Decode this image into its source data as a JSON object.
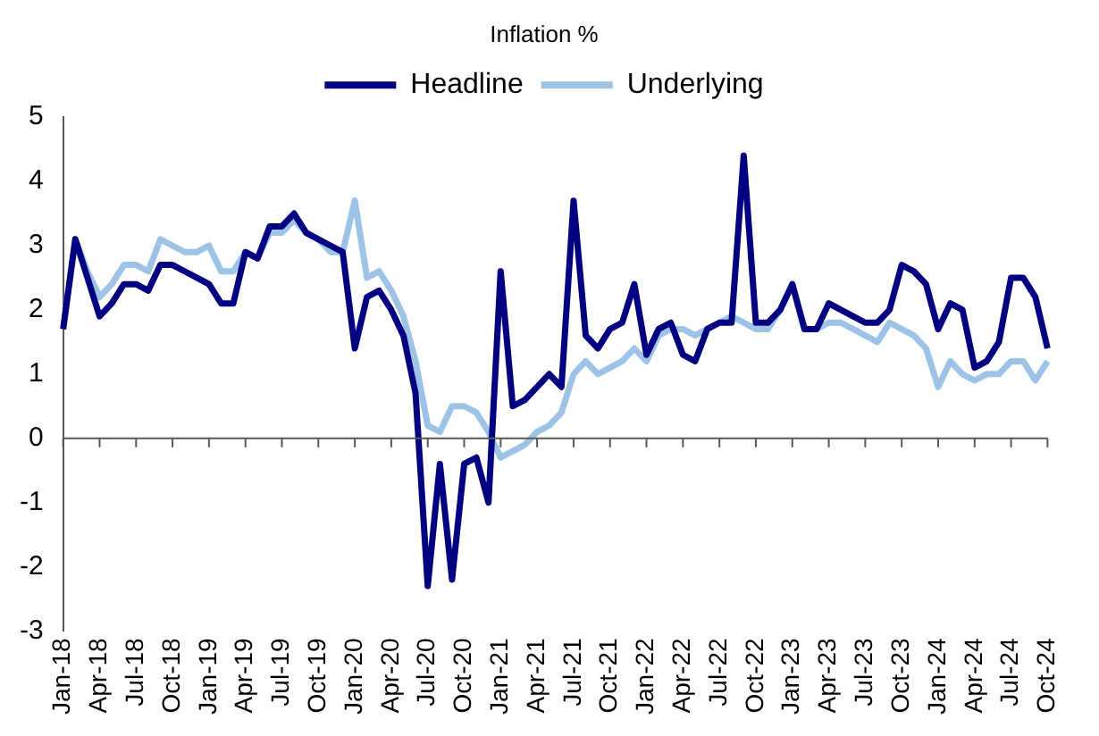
{
  "chart_data": {
    "type": "line",
    "title": "Inflation %",
    "categories": [
      "Jan-18",
      null,
      null,
      "Apr-18",
      null,
      null,
      "Jul-18",
      null,
      null,
      "Oct-18",
      null,
      null,
      "Jan-19",
      null,
      null,
      "Apr-19",
      null,
      null,
      "Jul-19",
      null,
      null,
      "Oct-19",
      null,
      null,
      "Jan-20",
      null,
      null,
      "Apr-20",
      null,
      null,
      "Jul-20",
      null,
      null,
      "Oct-20",
      null,
      null,
      "Jan-21",
      null,
      null,
      "Apr-21",
      null,
      null,
      "Jul-21",
      null,
      null,
      "Oct-21",
      null,
      null,
      "Jan-22",
      null,
      null,
      "Apr-22",
      null,
      null,
      "Jul-22",
      null,
      null,
      "Oct-22",
      null,
      null,
      "Jan-23",
      null,
      null,
      "Apr-23",
      null,
      null,
      "Jul-23",
      null,
      null,
      "Oct-23",
      null,
      null,
      "Jan-24",
      null,
      null,
      "Apr-24",
      null,
      null,
      "Jul-24",
      null,
      null,
      "Oct-24"
    ],
    "series": [
      {
        "name": "Headline",
        "color": "#000080",
        "values": [
          1.7,
          3.1,
          2.5,
          1.9,
          2.1,
          2.4,
          2.4,
          2.3,
          2.7,
          2.7,
          2.6,
          2.5,
          2.4,
          2.1,
          2.1,
          2.9,
          2.8,
          3.3,
          3.3,
          3.5,
          3.2,
          3.1,
          3.0,
          2.9,
          1.4,
          2.2,
          2.3,
          2.0,
          1.6,
          0.7,
          -2.3,
          -0.4,
          -2.2,
          -0.4,
          -0.3,
          -1.0,
          2.6,
          0.5,
          0.6,
          0.8,
          1.0,
          0.8,
          3.7,
          1.6,
          1.4,
          1.7,
          1.8,
          2.4,
          1.3,
          1.7,
          1.8,
          1.3,
          1.2,
          1.7,
          1.8,
          1.8,
          4.4,
          1.8,
          1.8,
          2.0,
          2.4,
          1.7,
          1.7,
          2.1,
          2.0,
          1.9,
          1.8,
          1.8,
          2.0,
          2.7,
          2.6,
          2.4,
          1.7,
          2.1,
          2.0,
          1.1,
          1.2,
          1.5,
          2.5,
          2.5,
          2.2,
          1.4
        ]
      },
      {
        "name": "Underlying",
        "color": "#9dc3e6",
        "values": [
          1.7,
          3.1,
          2.6,
          2.2,
          2.4,
          2.7,
          2.7,
          2.6,
          3.1,
          3.0,
          2.9,
          2.9,
          3.0,
          2.6,
          2.6,
          2.9,
          2.8,
          3.2,
          3.2,
          3.4,
          3.2,
          3.1,
          2.9,
          2.9,
          3.7,
          2.5,
          2.6,
          2.3,
          1.9,
          1.2,
          0.2,
          0.1,
          0.5,
          0.5,
          0.4,
          0.1,
          -0.3,
          -0.2,
          -0.1,
          0.1,
          0.2,
          0.4,
          1.0,
          1.2,
          1.0,
          1.1,
          1.2,
          1.4,
          1.2,
          1.6,
          1.7,
          1.7,
          1.6,
          1.7,
          1.8,
          1.9,
          1.8,
          1.7,
          1.7,
          2.0,
          2.4,
          1.7,
          1.7,
          1.8,
          1.8,
          1.7,
          1.6,
          1.5,
          1.8,
          1.7,
          1.6,
          1.4,
          0.8,
          1.2,
          1.0,
          0.9,
          1.0,
          1.0,
          1.2,
          1.2,
          0.9,
          1.2
        ]
      }
    ],
    "ylim": [
      -3,
      5
    ],
    "yticks": [
      -3,
      -2,
      -1,
      0,
      1,
      2,
      3,
      4,
      5
    ],
    "ref_lines": [
      {
        "axis": "y",
        "value": 0,
        "color": "#595959"
      }
    ],
    "grid": false,
    "legend": "top",
    "marker": "none",
    "line_style": "solid"
  }
}
